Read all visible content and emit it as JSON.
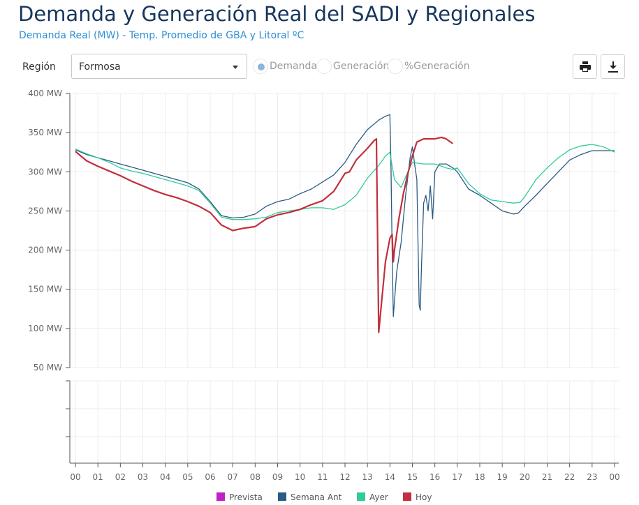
{
  "header": {
    "title": "Demanda y Generación Real del SADI y Regionales",
    "subtitle": "Demanda Real (MW) - Temp. Promedio de GBA y Litoral ºC"
  },
  "controls": {
    "region_label": "Región",
    "region_value": "Formosa",
    "radios": [
      {
        "label": "Demanda",
        "selected": true
      },
      {
        "label": "Generación",
        "selected": false
      },
      {
        "label": "%Generación",
        "selected": false
      }
    ],
    "print_icon": "printer-icon",
    "download_icon": "download-icon"
  },
  "colors": {
    "Prevista": "#c21fc9",
    "Semana Ant": "#2b5b84",
    "Ayer": "#2fcb99",
    "Hoy": "#c22f3e"
  },
  "chart_data": {
    "type": "line",
    "x_unit": "hour",
    "xlim": [
      0,
      24
    ],
    "ylim": [
      50,
      400
    ],
    "yticks": [
      50,
      100,
      150,
      200,
      250,
      300,
      350,
      400
    ],
    "ytick_labels": [
      "50 MW",
      "100 MW",
      "150 MW",
      "200 MW",
      "250 MW",
      "300 MW",
      "350 MW",
      "400 MW"
    ],
    "xtick_labels": [
      "00",
      "01",
      "02",
      "03",
      "04",
      "05",
      "06",
      "07",
      "08",
      "09",
      "10",
      "11",
      "12",
      "13",
      "14",
      "15",
      "16",
      "17",
      "18",
      "19",
      "20",
      "21",
      "22",
      "23",
      "00"
    ],
    "grid": true,
    "legend_position": "bottom",
    "series": [
      {
        "name": "Prevista",
        "x": [],
        "y": []
      },
      {
        "name": "Semana Ant",
        "x": [
          0,
          0.5,
          1,
          1.5,
          2,
          2.5,
          3,
          3.5,
          4,
          4.5,
          5,
          5.5,
          6,
          6.5,
          7,
          7.5,
          8,
          8.5,
          9,
          9.5,
          10,
          10.5,
          11,
          11.5,
          12,
          12.5,
          13,
          13.5,
          13.8,
          14,
          14.05,
          14.1,
          14.15,
          14.3,
          14.5,
          14.7,
          14.9,
          15,
          15.1,
          15.2,
          15.3,
          15.35,
          15.4,
          15.5,
          15.6,
          15.7,
          15.8,
          15.9,
          16,
          16.2,
          16.5,
          16.8,
          17,
          17.5,
          18,
          18.5,
          19,
          19.5,
          19.7,
          20,
          20.5,
          21,
          21.5,
          22,
          22.5,
          23,
          23.5,
          24
        ],
        "y": [
          328,
          322,
          318,
          314,
          310,
          306,
          302,
          298,
          294,
          290,
          286,
          278,
          262,
          244,
          241,
          242,
          246,
          256,
          262,
          265,
          272,
          278,
          287,
          296,
          312,
          335,
          354,
          366,
          371,
          373,
          305,
          200,
          115,
          172,
          210,
          270,
          318,
          332,
          310,
          290,
          130,
          123,
          175,
          260,
          270,
          250,
          282,
          240,
          300,
          310,
          310,
          305,
          300,
          278,
          270,
          260,
          250,
          246,
          247,
          256,
          270,
          285,
          300,
          315,
          322,
          327,
          327,
          327
        ]
      },
      {
        "name": "Ayer",
        "x": [
          0,
          0.5,
          1,
          1.5,
          2,
          2.5,
          3,
          3.5,
          4,
          4.5,
          5,
          5.5,
          6,
          6.5,
          7,
          7.5,
          8,
          8.5,
          9,
          9.5,
          10,
          10.5,
          11,
          11.5,
          12,
          12.5,
          13,
          13.5,
          13.8,
          14,
          14.2,
          14.5,
          14.8,
          15,
          15.5,
          16,
          16.5,
          16.8,
          17,
          17.5,
          18,
          18.5,
          19,
          19.5,
          19.8,
          20,
          20.5,
          21,
          21.5,
          22,
          22.5,
          23,
          23.5,
          24
        ],
        "y": [
          329,
          323,
          318,
          312,
          305,
          301,
          298,
          294,
          290,
          286,
          282,
          276,
          260,
          242,
          239,
          239,
          240,
          242,
          248,
          250,
          252,
          254,
          254,
          252,
          258,
          270,
          292,
          308,
          320,
          325,
          290,
          280,
          300,
          312,
          310,
          310,
          305,
          303,
          305,
          285,
          272,
          264,
          262,
          260,
          261,
          268,
          290,
          305,
          318,
          328,
          333,
          335,
          332,
          325
        ]
      },
      {
        "name": "Hoy",
        "x": [
          0,
          0.5,
          1,
          1.5,
          2,
          2.5,
          3,
          3.5,
          4,
          4.5,
          5,
          5.5,
          6,
          6.5,
          7,
          7.5,
          8,
          8.5,
          9,
          9.5,
          10,
          10.5,
          11,
          11.5,
          12,
          12.2,
          12.5,
          13,
          13.3,
          13.4,
          13.5,
          13.6,
          13.8,
          14,
          14.1,
          14.15,
          14.2,
          14.4,
          14.6,
          14.8,
          15,
          15.2,
          15.5,
          16,
          16.3,
          16.5,
          16.8
        ],
        "y": [
          326,
          314,
          307,
          301,
          295,
          288,
          282,
          276,
          271,
          267,
          262,
          256,
          248,
          232,
          225,
          228,
          230,
          240,
          245,
          248,
          252,
          258,
          263,
          275,
          298,
          300,
          315,
          330,
          340,
          342,
          95,
          125,
          185,
          215,
          220,
          185,
          200,
          240,
          272,
          298,
          320,
          338,
          342,
          342,
          344,
          342,
          336
        ]
      }
    ]
  }
}
